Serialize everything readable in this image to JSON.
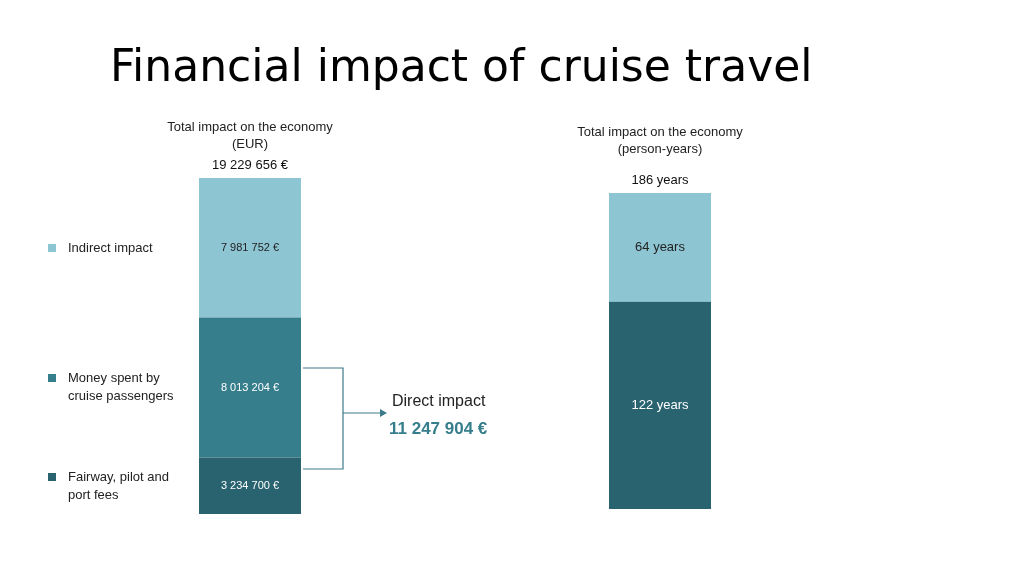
{
  "chart_data": [
    {
      "type": "bar",
      "title": "Financial impact of cruise travel",
      "subtitle": "Total impact on the economy (EUR)",
      "categories": [
        null
      ],
      "stacked": true,
      "legend": "left",
      "totals": [
        "19 229 656 €"
      ],
      "series": [
        {
          "name": "Fairway, pilot and port fees",
          "color": "#2a6370",
          "values": [
            3234700
          ],
          "value_labels": [
            "3 234 700 €"
          ]
        },
        {
          "name": "Money spent by cruise passengers",
          "color": "#367e8c",
          "values": [
            8013204
          ],
          "value_labels": [
            "8 013 204 €"
          ]
        },
        {
          "name": "Indirect impact",
          "color": "#8ec5d3",
          "values": [
            7981752
          ],
          "value_labels": [
            "7 981 752 €"
          ]
        }
      ],
      "annotations": [
        "Direct impact",
        "11 247 904 €"
      ]
    },
    {
      "type": "bar",
      "subtitle": "Total impact on the economy (person-years)",
      "categories": [
        null
      ],
      "stacked": true,
      "totals": [
        "186 years"
      ],
      "series": [
        {
          "color": "#2a6370",
          "values": [
            122
          ],
          "value_labels": [
            "122 years"
          ]
        },
        {
          "color": "#8ec5d3",
          "values": [
            64
          ],
          "value_labels": [
            "64 years"
          ]
        }
      ]
    }
  ]
}
